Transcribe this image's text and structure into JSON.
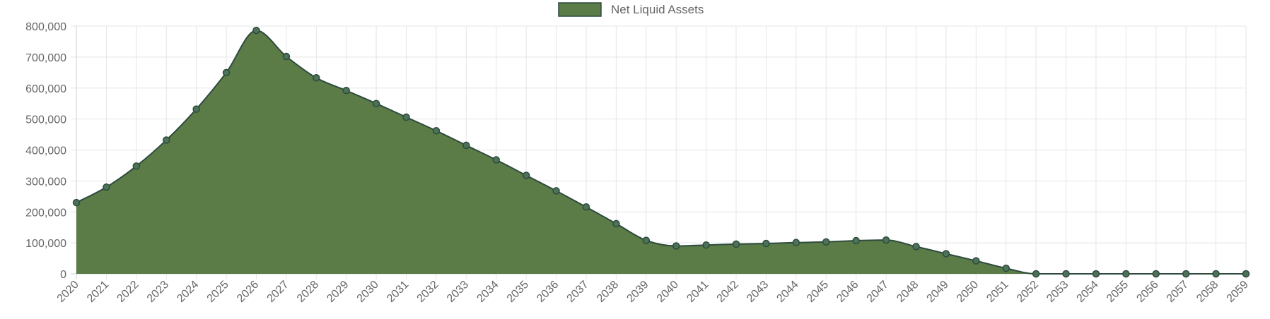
{
  "chart_data": {
    "type": "area",
    "legend": {
      "label": "Net Liquid Assets",
      "placement": "top-center"
    },
    "colors": {
      "fill": "#5b7c47",
      "line": "#2e4a3e",
      "point": "#4c7358"
    },
    "x": [
      2020,
      2021,
      2022,
      2023,
      2024,
      2025,
      2026,
      2027,
      2028,
      2029,
      2030,
      2031,
      2032,
      2033,
      2034,
      2035,
      2036,
      2037,
      2038,
      2039,
      2040,
      2041,
      2042,
      2043,
      2044,
      2045,
      2046,
      2047,
      2048,
      2049,
      2050,
      2051,
      2052,
      2053,
      2054,
      2055,
      2056,
      2057,
      2058,
      2059
    ],
    "series": [
      {
        "name": "Net Liquid Assets",
        "values": [
          230000,
          280000,
          348000,
          432000,
          532000,
          650000,
          786000,
          702000,
          633000,
          592000,
          550000,
          506000,
          462000,
          415000,
          368000,
          318000,
          268000,
          216000,
          162000,
          108000,
          90000,
          93000,
          96000,
          98000,
          101000,
          103000,
          107000,
          109000,
          88000,
          65000,
          42000,
          18000,
          0,
          0,
          0,
          0,
          0,
          0,
          0,
          0
        ]
      }
    ],
    "y_ticks": [
      "0",
      "100,000",
      "200,000",
      "300,000",
      "400,000",
      "500,000",
      "600,000",
      "700,000",
      "800,000"
    ],
    "ylim": [
      0,
      800000
    ],
    "grid": true
  }
}
